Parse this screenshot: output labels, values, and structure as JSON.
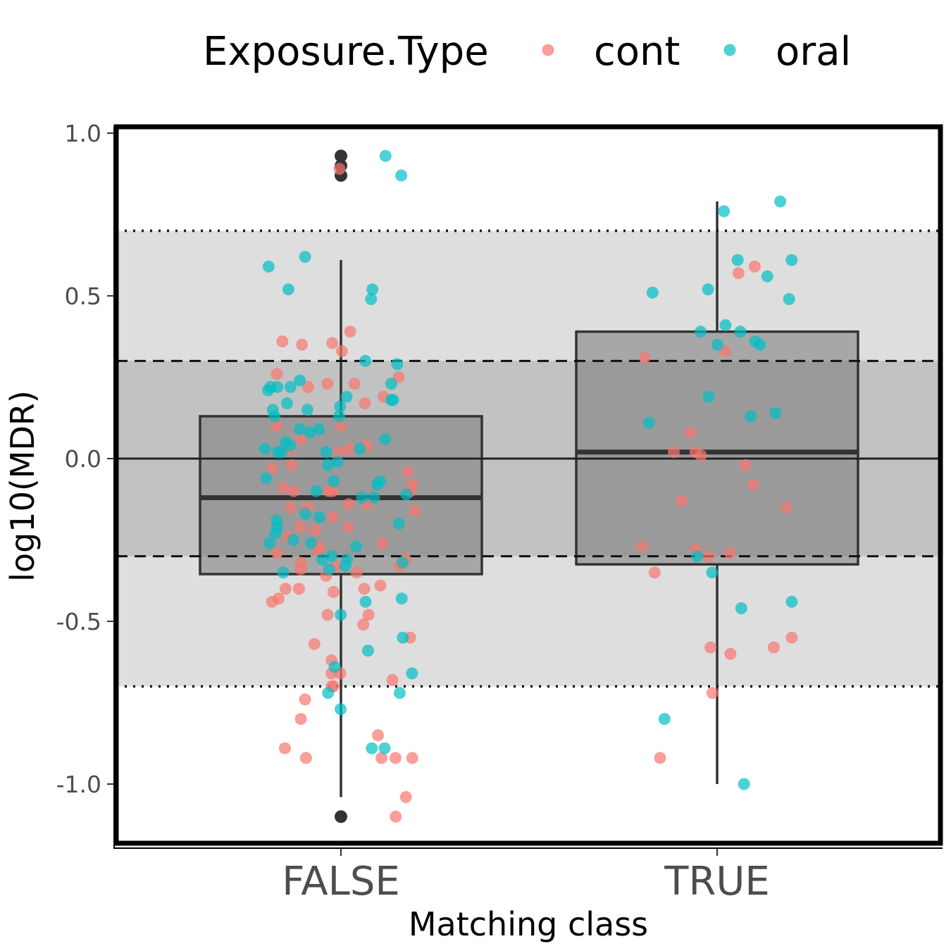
{
  "chart_data": {
    "type": "boxplot",
    "xlabel": "Matching class",
    "ylabel": "log10(MDR)",
    "categories": [
      "FALSE",
      "TRUE"
    ],
    "ylim": [
      -1.2,
      1.02
    ],
    "yticks": [
      1.0,
      0.5,
      0.0,
      -0.5,
      -1.0
    ],
    "ytick_labels": [
      "1.0",
      "0.5",
      "0.0",
      "-0.5",
      "-1.0"
    ],
    "grid": false,
    "legend": {
      "title": "Exposure.Type",
      "position": "top",
      "entries": [
        {
          "label": "cont",
          "color": "#F8766D"
        },
        {
          "label": "oral",
          "color": "#00BFC4"
        }
      ]
    },
    "reference_bands": {
      "inner": [
        -0.3,
        0.3
      ],
      "outer": [
        -0.7,
        0.7
      ],
      "zero_line": 0.0
    },
    "boxes": [
      {
        "category": "FALSE",
        "q1": -0.355,
        "median": -0.12,
        "q3": 0.13,
        "whisker_low": -1.04,
        "whisker_high": 0.61,
        "outliers": [
          0.93,
          0.9,
          0.87,
          -1.1
        ]
      },
      {
        "category": "TRUE",
        "q1": -0.325,
        "median": 0.02,
        "q3": 0.39,
        "whisker_low": -1.0,
        "whisker_high": 0.79,
        "outliers": []
      }
    ],
    "series": [
      {
        "name": "cont",
        "points": [
          {
            "x": "FALSE",
            "y": 0.89
          },
          {
            "x": "FALSE",
            "y": 0.39
          },
          {
            "x": "FALSE",
            "y": 0.36
          },
          {
            "x": "FALSE",
            "y": 0.35
          },
          {
            "x": "FALSE",
            "y": 0.355
          },
          {
            "x": "FALSE",
            "y": 0.33
          },
          {
            "x": "FALSE",
            "y": 0.26
          },
          {
            "x": "FALSE",
            "y": 0.25
          },
          {
            "x": "FALSE",
            "y": 0.23
          },
          {
            "x": "FALSE",
            "y": 0.23
          },
          {
            "x": "FALSE",
            "y": 0.22
          },
          {
            "x": "FALSE",
            "y": 0.19
          },
          {
            "x": "FALSE",
            "y": 0.17
          },
          {
            "x": "FALSE",
            "y": 0.1
          },
          {
            "x": "FALSE",
            "y": 0.1
          },
          {
            "x": "FALSE",
            "y": 0.06
          },
          {
            "x": "FALSE",
            "y": 0.04
          },
          {
            "x": "FALSE",
            "y": 0.03
          },
          {
            "x": "FALSE",
            "y": 0.03
          },
          {
            "x": "FALSE",
            "y": 0.02
          },
          {
            "x": "FALSE",
            "y": -0.02
          },
          {
            "x": "FALSE",
            "y": -0.03
          },
          {
            "x": "FALSE",
            "y": -0.04
          },
          {
            "x": "FALSE",
            "y": -0.08
          },
          {
            "x": "FALSE",
            "y": -0.09
          },
          {
            "x": "FALSE",
            "y": -0.1
          },
          {
            "x": "FALSE",
            "y": -0.1
          },
          {
            "x": "FALSE",
            "y": -0.1
          },
          {
            "x": "FALSE",
            "y": -0.1
          },
          {
            "x": "FALSE",
            "y": -0.14
          },
          {
            "x": "FALSE",
            "y": -0.14
          },
          {
            "x": "FALSE",
            "y": -0.15
          },
          {
            "x": "FALSE",
            "y": -0.15
          },
          {
            "x": "FALSE",
            "y": -0.16
          },
          {
            "x": "FALSE",
            "y": -0.18
          },
          {
            "x": "FALSE",
            "y": -0.21
          },
          {
            "x": "FALSE",
            "y": -0.21
          },
          {
            "x": "FALSE",
            "y": -0.22
          },
          {
            "x": "FALSE",
            "y": -0.24
          },
          {
            "x": "FALSE",
            "y": -0.26
          },
          {
            "x": "FALSE",
            "y": -0.27
          },
          {
            "x": "FALSE",
            "y": -0.28
          },
          {
            "x": "FALSE",
            "y": -0.29
          },
          {
            "x": "FALSE",
            "y": -0.31
          },
          {
            "x": "FALSE",
            "y": -0.32
          },
          {
            "x": "FALSE",
            "y": -0.33
          },
          {
            "x": "FALSE",
            "y": -0.33
          },
          {
            "x": "FALSE",
            "y": -0.34
          },
          {
            "x": "FALSE",
            "y": -0.35
          },
          {
            "x": "FALSE",
            "y": -0.36
          },
          {
            "x": "FALSE",
            "y": -0.39
          },
          {
            "x": "FALSE",
            "y": -0.4
          },
          {
            "x": "FALSE",
            "y": -0.4
          },
          {
            "x": "FALSE",
            "y": -0.4
          },
          {
            "x": "FALSE",
            "y": -0.41
          },
          {
            "x": "FALSE",
            "y": -0.43
          },
          {
            "x": "FALSE",
            "y": -0.44
          },
          {
            "x": "FALSE",
            "y": -0.48
          },
          {
            "x": "FALSE",
            "y": -0.48
          },
          {
            "x": "FALSE",
            "y": -0.51
          },
          {
            "x": "FALSE",
            "y": -0.55
          },
          {
            "x": "FALSE",
            "y": -0.57
          },
          {
            "x": "FALSE",
            "y": -0.62
          },
          {
            "x": "FALSE",
            "y": -0.66
          },
          {
            "x": "FALSE",
            "y": -0.66
          },
          {
            "x": "FALSE",
            "y": -0.68
          },
          {
            "x": "FALSE",
            "y": -0.7
          },
          {
            "x": "FALSE",
            "y": -0.7
          },
          {
            "x": "FALSE",
            "y": -0.74
          },
          {
            "x": "FALSE",
            "y": -0.8
          },
          {
            "x": "FALSE",
            "y": -0.85
          },
          {
            "x": "FALSE",
            "y": -0.89
          },
          {
            "x": "FALSE",
            "y": -0.92
          },
          {
            "x": "FALSE",
            "y": -0.92
          },
          {
            "x": "FALSE",
            "y": -0.92
          },
          {
            "x": "FALSE",
            "y": -0.92
          },
          {
            "x": "FALSE",
            "y": -1.04
          },
          {
            "x": "FALSE",
            "y": -1.1
          },
          {
            "x": "TRUE",
            "y": 0.59
          },
          {
            "x": "TRUE",
            "y": 0.57
          },
          {
            "x": "TRUE",
            "y": 0.33
          },
          {
            "x": "TRUE",
            "y": 0.31
          },
          {
            "x": "TRUE",
            "y": 0.08
          },
          {
            "x": "TRUE",
            "y": 0.02
          },
          {
            "x": "TRUE",
            "y": 0.02
          },
          {
            "x": "TRUE",
            "y": 0.01
          },
          {
            "x": "TRUE",
            "y": -0.02
          },
          {
            "x": "TRUE",
            "y": -0.08
          },
          {
            "x": "TRUE",
            "y": -0.13
          },
          {
            "x": "TRUE",
            "y": -0.15
          },
          {
            "x": "TRUE",
            "y": -0.27
          },
          {
            "x": "TRUE",
            "y": -0.28
          },
          {
            "x": "TRUE",
            "y": -0.29
          },
          {
            "x": "TRUE",
            "y": -0.3
          },
          {
            "x": "TRUE",
            "y": -0.35
          },
          {
            "x": "TRUE",
            "y": -0.55
          },
          {
            "x": "TRUE",
            "y": -0.58
          },
          {
            "x": "TRUE",
            "y": -0.58
          },
          {
            "x": "TRUE",
            "y": -0.6
          },
          {
            "x": "TRUE",
            "y": -0.72
          },
          {
            "x": "TRUE",
            "y": -0.92
          }
        ]
      },
      {
        "name": "oral",
        "points": [
          {
            "x": "FALSE",
            "y": 0.93
          },
          {
            "x": "FALSE",
            "y": 0.87
          },
          {
            "x": "FALSE",
            "y": 0.62
          },
          {
            "x": "FALSE",
            "y": 0.59
          },
          {
            "x": "FALSE",
            "y": 0.52
          },
          {
            "x": "FALSE",
            "y": 0.52
          },
          {
            "x": "FALSE",
            "y": 0.49
          },
          {
            "x": "FALSE",
            "y": 0.3
          },
          {
            "x": "FALSE",
            "y": 0.29
          },
          {
            "x": "FALSE",
            "y": 0.24
          },
          {
            "x": "FALSE",
            "y": 0.23
          },
          {
            "x": "FALSE",
            "y": 0.22
          },
          {
            "x": "FALSE",
            "y": 0.22
          },
          {
            "x": "FALSE",
            "y": 0.22
          },
          {
            "x": "FALSE",
            "y": 0.21
          },
          {
            "x": "FALSE",
            "y": 0.19
          },
          {
            "x": "FALSE",
            "y": 0.18
          },
          {
            "x": "FALSE",
            "y": 0.18
          },
          {
            "x": "FALSE",
            "y": 0.17
          },
          {
            "x": "FALSE",
            "y": 0.16
          },
          {
            "x": "FALSE",
            "y": 0.15
          },
          {
            "x": "FALSE",
            "y": 0.15
          },
          {
            "x": "FALSE",
            "y": 0.13
          },
          {
            "x": "FALSE",
            "y": 0.13
          },
          {
            "x": "FALSE",
            "y": 0.09
          },
          {
            "x": "FALSE",
            "y": 0.09
          },
          {
            "x": "FALSE",
            "y": 0.08
          },
          {
            "x": "FALSE",
            "y": 0.06
          },
          {
            "x": "FALSE",
            "y": 0.05
          },
          {
            "x": "FALSE",
            "y": 0.04
          },
          {
            "x": "FALSE",
            "y": 0.03
          },
          {
            "x": "FALSE",
            "y": 0.03
          },
          {
            "x": "FALSE",
            "y": 0.02
          },
          {
            "x": "FALSE",
            "y": 0.02
          },
          {
            "x": "FALSE",
            "y": 0.02
          },
          {
            "x": "FALSE",
            "y": -0.01
          },
          {
            "x": "FALSE",
            "y": -0.02
          },
          {
            "x": "FALSE",
            "y": -0.06
          },
          {
            "x": "FALSE",
            "y": -0.07
          },
          {
            "x": "FALSE",
            "y": -0.07
          },
          {
            "x": "FALSE",
            "y": -0.08
          },
          {
            "x": "FALSE",
            "y": -0.1
          },
          {
            "x": "FALSE",
            "y": -0.11
          },
          {
            "x": "FALSE",
            "y": -0.12
          },
          {
            "x": "FALSE",
            "y": -0.12
          },
          {
            "x": "FALSE",
            "y": -0.17
          },
          {
            "x": "FALSE",
            "y": -0.18
          },
          {
            "x": "FALSE",
            "y": -0.19
          },
          {
            "x": "FALSE",
            "y": -0.2
          },
          {
            "x": "FALSE",
            "y": -0.21
          },
          {
            "x": "FALSE",
            "y": -0.23
          },
          {
            "x": "FALSE",
            "y": -0.25
          },
          {
            "x": "FALSE",
            "y": -0.26
          },
          {
            "x": "FALSE",
            "y": -0.26
          },
          {
            "x": "FALSE",
            "y": -0.27
          },
          {
            "x": "FALSE",
            "y": -0.3
          },
          {
            "x": "FALSE",
            "y": -0.31
          },
          {
            "x": "FALSE",
            "y": -0.31
          },
          {
            "x": "FALSE",
            "y": -0.32
          },
          {
            "x": "FALSE",
            "y": -0.33
          },
          {
            "x": "FALSE",
            "y": -0.34
          },
          {
            "x": "FALSE",
            "y": -0.35
          },
          {
            "x": "FALSE",
            "y": -0.43
          },
          {
            "x": "FALSE",
            "y": -0.44
          },
          {
            "x": "FALSE",
            "y": -0.48
          },
          {
            "x": "FALSE",
            "y": -0.55
          },
          {
            "x": "FALSE",
            "y": -0.59
          },
          {
            "x": "FALSE",
            "y": -0.64
          },
          {
            "x": "FALSE",
            "y": -0.66
          },
          {
            "x": "FALSE",
            "y": -0.72
          },
          {
            "x": "FALSE",
            "y": -0.72
          },
          {
            "x": "FALSE",
            "y": -0.77
          },
          {
            "x": "FALSE",
            "y": -0.89
          },
          {
            "x": "FALSE",
            "y": -0.89
          },
          {
            "x": "TRUE",
            "y": 0.79
          },
          {
            "x": "TRUE",
            "y": 0.76
          },
          {
            "x": "TRUE",
            "y": 0.61
          },
          {
            "x": "TRUE",
            "y": 0.61
          },
          {
            "x": "TRUE",
            "y": 0.56
          },
          {
            "x": "TRUE",
            "y": 0.52
          },
          {
            "x": "TRUE",
            "y": 0.51
          },
          {
            "x": "TRUE",
            "y": 0.49
          },
          {
            "x": "TRUE",
            "y": 0.41
          },
          {
            "x": "TRUE",
            "y": 0.39
          },
          {
            "x": "TRUE",
            "y": 0.39
          },
          {
            "x": "TRUE",
            "y": 0.36
          },
          {
            "x": "TRUE",
            "y": 0.35
          },
          {
            "x": "TRUE",
            "y": 0.35
          },
          {
            "x": "TRUE",
            "y": 0.19
          },
          {
            "x": "TRUE",
            "y": 0.14
          },
          {
            "x": "TRUE",
            "y": 0.13
          },
          {
            "x": "TRUE",
            "y": 0.11
          },
          {
            "x": "TRUE",
            "y": -0.3
          },
          {
            "x": "TRUE",
            "y": -0.35
          },
          {
            "x": "TRUE",
            "y": -0.44
          },
          {
            "x": "TRUE",
            "y": -0.46
          },
          {
            "x": "TRUE",
            "y": -0.8
          },
          {
            "x": "TRUE",
            "y": -1.0
          }
        ]
      }
    ]
  }
}
